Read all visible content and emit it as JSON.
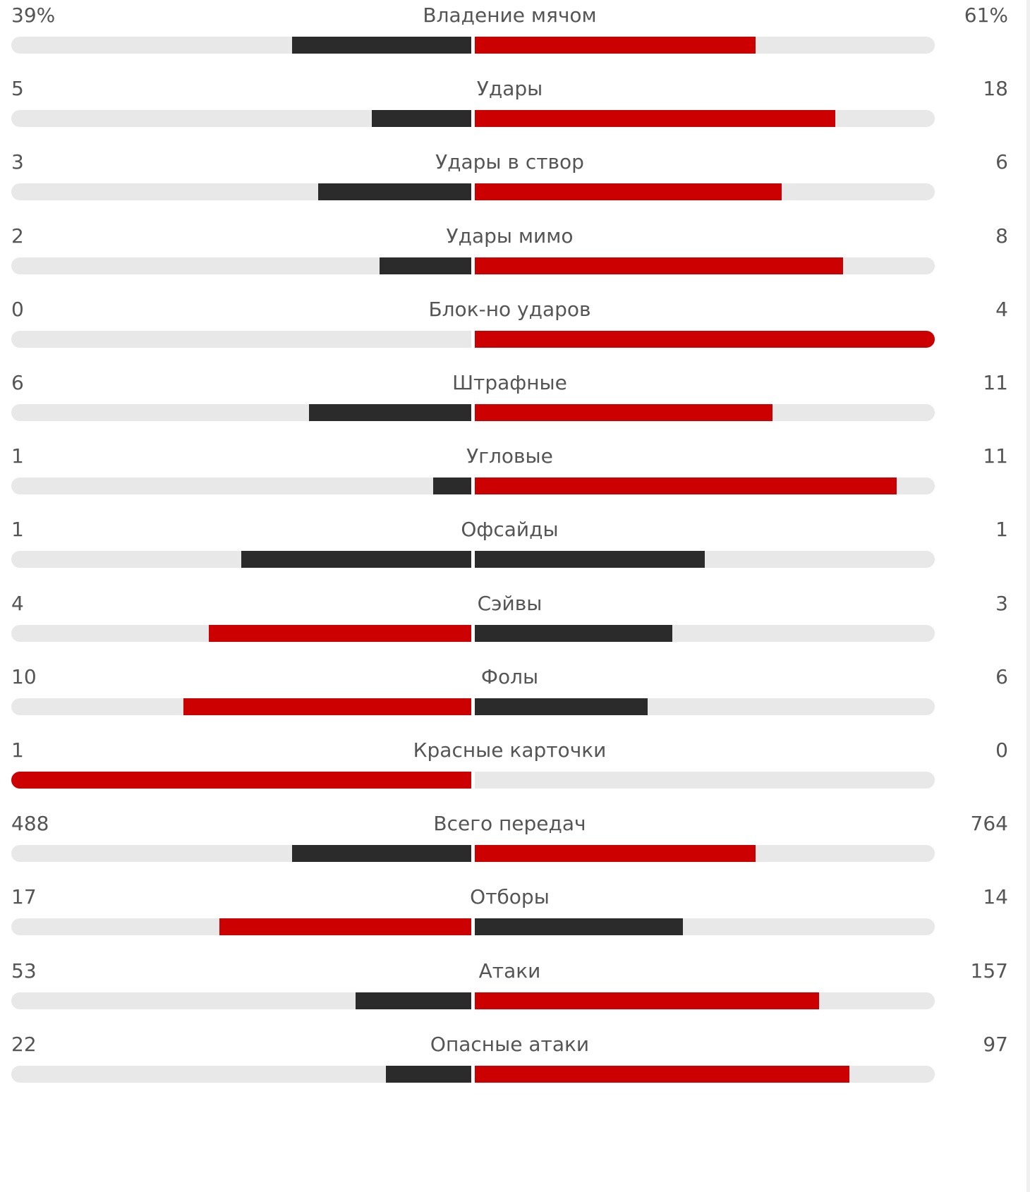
{
  "colors": {
    "leader": "#cc0000",
    "trailer": "#2b2b2b",
    "track": "#e8e8e8",
    "text": "#555555"
  },
  "stats": [
    {
      "label": "Владение мячом",
      "home": "39%",
      "away": "61%",
      "home_share": 0.39,
      "away_share": 0.61
    },
    {
      "label": "Удары",
      "home": "5",
      "away": "18",
      "home_share": 0.217,
      "away_share": 0.783
    },
    {
      "label": "Удары в створ",
      "home": "3",
      "away": "6",
      "home_share": 0.333,
      "away_share": 0.667
    },
    {
      "label": "Удары мимо",
      "home": "2",
      "away": "8",
      "home_share": 0.2,
      "away_share": 0.8
    },
    {
      "label": "Блок-но ударов",
      "home": "0",
      "away": "4",
      "home_share": 0.0,
      "away_share": 1.0
    },
    {
      "label": "Штрафные",
      "home": "6",
      "away": "11",
      "home_share": 0.353,
      "away_share": 0.647
    },
    {
      "label": "Угловые",
      "home": "1",
      "away": "11",
      "home_share": 0.083,
      "away_share": 0.917
    },
    {
      "label": "Офсайды",
      "home": "1",
      "away": "1",
      "home_share": 0.5,
      "away_share": 0.5
    },
    {
      "label": "Сэйвы",
      "home": "4",
      "away": "3",
      "home_share": 0.571,
      "away_share": 0.429
    },
    {
      "label": "Фолы",
      "home": "10",
      "away": "6",
      "home_share": 0.625,
      "away_share": 0.375
    },
    {
      "label": "Красные карточки",
      "home": "1",
      "away": "0",
      "home_share": 1.0,
      "away_share": 0.0
    },
    {
      "label": "Всего передач",
      "home": "488",
      "away": "764",
      "home_share": 0.39,
      "away_share": 0.61
    },
    {
      "label": "Отборы",
      "home": "17",
      "away": "14",
      "home_share": 0.548,
      "away_share": 0.452
    },
    {
      "label": "Атаки",
      "home": "53",
      "away": "157",
      "home_share": 0.252,
      "away_share": 0.748
    },
    {
      "label": "Опасные атаки",
      "home": "22",
      "away": "97",
      "home_share": 0.185,
      "away_share": 0.815
    }
  ]
}
